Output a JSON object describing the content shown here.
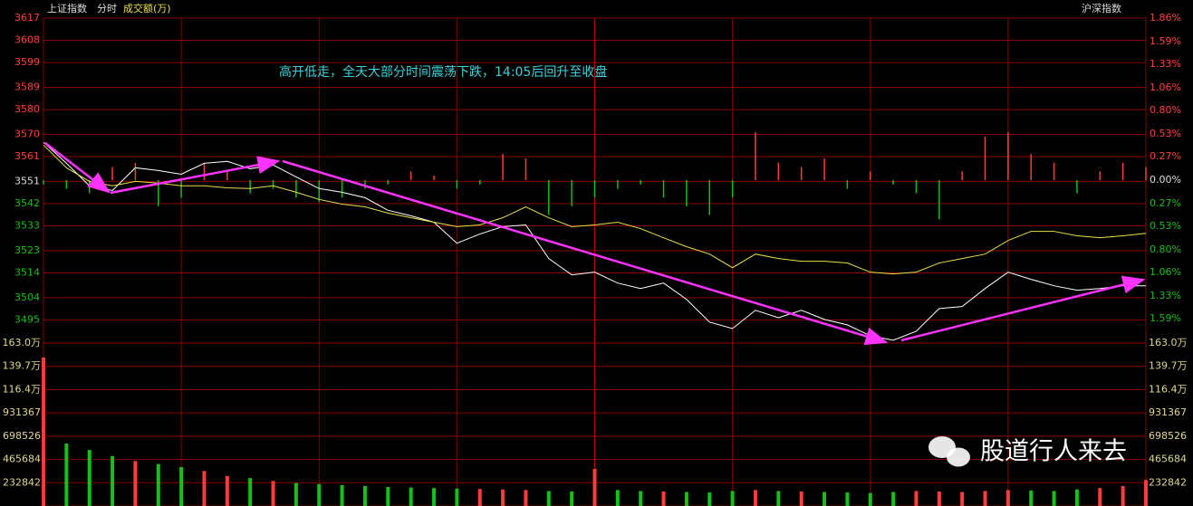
{
  "chart_data": {
    "type": "line",
    "title": "上证指数",
    "subtitle": "分时",
    "volume_label": "成交额(万)",
    "index_name": "沪深指数",
    "annotation": "高开低走，全天大部分时间震荡下跌，14:05后回升至收盘",
    "watermark": "股道行人来去",
    "ylim": [
      3486,
      3617
    ],
    "yticks": [
      3617,
      3608,
      3599,
      3589,
      3580,
      3570,
      3561,
      3551,
      3542,
      3533,
      3523,
      3514,
      3504,
      3495
    ],
    "y2lim": [
      -1.86,
      1.86
    ],
    "y2ticks": [
      {
        "value": 1.86,
        "label": "1.86%"
      },
      {
        "value": 1.59,
        "label": "1.59%"
      },
      {
        "value": 1.33,
        "label": "1.33%"
      },
      {
        "value": 1.06,
        "label": "1.06%"
      },
      {
        "value": 0.8,
        "label": "0.80%"
      },
      {
        "value": 0.53,
        "label": "0.53%"
      },
      {
        "value": 0.27,
        "label": "0.27%"
      },
      {
        "value": 0,
        "label": "0.00%"
      },
      {
        "value": -0.27,
        "label": "0.27%"
      },
      {
        "value": -0.53,
        "label": "0.53%"
      },
      {
        "value": -0.8,
        "label": "0.80%"
      },
      {
        "value": -1.06,
        "label": "1.06%"
      },
      {
        "value": -1.33,
        "label": "1.33%"
      },
      {
        "value": -1.59,
        "label": "1.59%"
      }
    ],
    "grid": true,
    "series": [
      {
        "color": "#ffffff",
        "values": [
          3566.8,
          3558.3,
          3549.2,
          3547.3,
          3556.5,
          3555.4,
          3553.9,
          3558.3,
          3559.1,
          3556.1,
          3557.6,
          3552.8,
          3548.1,
          3546.6,
          3544.4,
          3539.3,
          3537.1,
          3534.5,
          3526.0,
          3529.7,
          3532.7,
          3533.4,
          3519.8,
          3513.2,
          3514.3,
          3509.9,
          3507.7,
          3509.9,
          3503.3,
          3494.1,
          3491.5,
          3498.9,
          3495.9,
          3498.9,
          3495.2,
          3493.0,
          3488.6,
          3486.8,
          3490.4,
          3499.6,
          3500.4,
          3507.7,
          3514.3,
          3511.4,
          3508.8,
          3507.0,
          3507.7,
          3508.8,
          3508.8
        ]
      },
      {
        "color": "#e8e04a",
        "values": [
          3565.7,
          3556.5,
          3551,
          3549.2,
          3551,
          3550.3,
          3549.2,
          3549.2,
          3548.4,
          3548.1,
          3549.2,
          3546.6,
          3543.7,
          3541.8,
          3540.7,
          3538.2,
          3536.3,
          3534.5,
          3532.7,
          3533.4,
          3536.3,
          3540.7,
          3536.3,
          3532.7,
          3533.4,
          3534.5,
          3531.9,
          3528.2,
          3524.6,
          3521.6,
          3516.1,
          3521.6,
          3519.8,
          3518.7,
          3518.7,
          3518.0,
          3514.3,
          3513.6,
          3514.3,
          3518.0,
          3519.8,
          3521.6,
          3527.1,
          3530.8,
          3530.8,
          3529.0,
          3528.2,
          3529.0,
          3530.0
        ]
      }
    ],
    "breadth": {
      "axis": "y2",
      "up_color": "#ff3c3c",
      "down_color": "#16c016",
      "values": [
        -0.05,
        -0.1,
        -0.15,
        0.15,
        0.2,
        -0.3,
        -0.2,
        0.2,
        0.1,
        -0.15,
        -0.1,
        -0.2,
        -0.25,
        -0.2,
        -0.1,
        -0.05,
        0.1,
        0.05,
        -0.1,
        -0.05,
        0.3,
        0.25,
        -0.4,
        -0.3,
        -0.2,
        -0.1,
        -0.05,
        -0.2,
        -0.3,
        -0.4,
        -0.2,
        0.55,
        0.2,
        0.15,
        0.25,
        -0.1,
        0.1,
        -0.05,
        -0.15,
        -0.45,
        0.1,
        0.5,
        0.55,
        0.3,
        0.2,
        -0.15,
        0.1,
        0.2,
        0.15
      ]
    },
    "volume": {
      "up_color": "#ff3c3c",
      "down_color": "#16c016",
      "ylim": [
        0,
        1630000
      ],
      "yticks": [
        {
          "value": 1630000,
          "label": "163.0万"
        },
        {
          "value": 1397000,
          "label": "139.7万"
        },
        {
          "value": 1164000,
          "label": "116.4万"
        },
        931367,
        698526,
        465684,
        232842
      ],
      "values": [
        1485000,
        625000,
        560000,
        500000,
        450000,
        420000,
        390000,
        350000,
        300000,
        280000,
        250000,
        230000,
        220000,
        210000,
        200000,
        190000,
        185000,
        180000,
        175000,
        170000,
        165000,
        160000,
        150000,
        145000,
        371000,
        160000,
        150000,
        145000,
        140000,
        135000,
        150000,
        160000,
        150000,
        145000,
        140000,
        135000,
        130000,
        140000,
        150000,
        145000,
        140000,
        150000,
        160000,
        155000,
        150000,
        165000,
        180000,
        200000,
        260000
      ]
    }
  }
}
